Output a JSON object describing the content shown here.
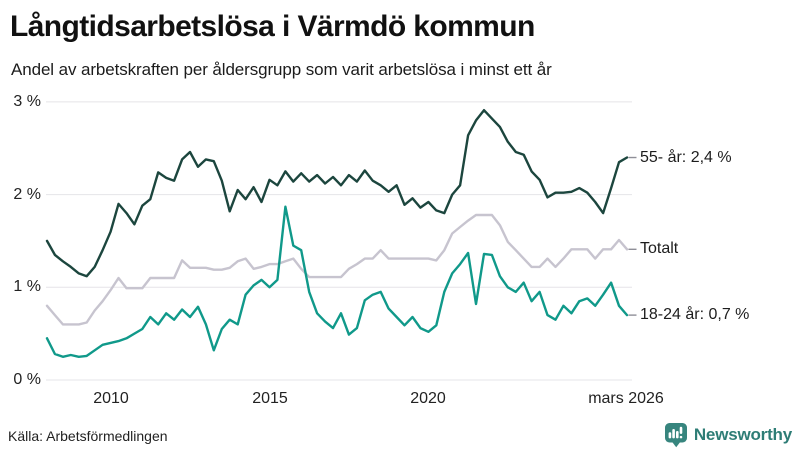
{
  "header": {
    "title": "Långtidsarbetslösa i Värmdö kommun",
    "subtitle": "Andel av arbetskraften per åldersgrupp som varit arbetslösa i minst ett år"
  },
  "footer": {
    "source": "Källa: Arbetsförmedlingen",
    "brand": "Newsworthy",
    "brand_color": "#2e7d76"
  },
  "chart_data": {
    "type": "line",
    "title": "Långtidsarbetslösa i Värmdö kommun",
    "subtitle": "Andel av arbetskraften per åldersgrupp som varit arbetslösa i minst ett år",
    "unit": "%",
    "x_start": 2008.0,
    "x_step": 0.25,
    "x_end_label": "mars 2026",
    "grid_color": "#e5e4e8",
    "label_dash_color": "#8f8f98",
    "y_axis": {
      "min": 0,
      "max": 3,
      "ticks": [
        "3 %",
        "2 %",
        "1 %",
        "0 %"
      ],
      "tick_values": [
        3,
        2,
        1,
        0
      ]
    },
    "x_axis": {
      "ticks": [
        {
          "label": "2010",
          "year": 2010
        },
        {
          "label": "2015",
          "year": 2015
        },
        {
          "label": "2020",
          "year": 2020
        },
        {
          "label": "mars 2026",
          "year": 2026.2
        }
      ]
    },
    "legend_position": "right-end-labels",
    "series": [
      {
        "id": "55plus",
        "name": "55- år",
        "end_label": "55- år: 2,4 %",
        "end_value": 2.4,
        "color": "#1c463e",
        "values": [
          1.5,
          1.35,
          1.28,
          1.22,
          1.15,
          1.12,
          1.22,
          1.4,
          1.6,
          1.9,
          1.8,
          1.68,
          1.88,
          1.95,
          2.24,
          2.18,
          2.15,
          2.38,
          2.46,
          2.3,
          2.38,
          2.36,
          2.15,
          1.82,
          2.05,
          1.95,
          2.08,
          1.92,
          2.16,
          2.1,
          2.25,
          2.14,
          2.23,
          2.14,
          2.21,
          2.12,
          2.19,
          2.1,
          2.21,
          2.14,
          2.26,
          2.15,
          2.1,
          2.03,
          2.1,
          1.89,
          1.96,
          1.86,
          1.92,
          1.83,
          1.8,
          2.0,
          2.1,
          2.64,
          2.8,
          2.91,
          2.82,
          2.73,
          2.57,
          2.46,
          2.43,
          2.25,
          2.16,
          1.97,
          2.02,
          2.02,
          2.03,
          2.07,
          2.02,
          1.92,
          1.8,
          2.07,
          2.35,
          2.4
        ]
      },
      {
        "id": "totalt",
        "name": "Totalt",
        "end_label": "Totalt",
        "end_value": 1.4,
        "color": "#c7c4cf",
        "values": [
          0.8,
          0.7,
          0.6,
          0.6,
          0.6,
          0.62,
          0.75,
          0.85,
          0.97,
          1.1,
          0.99,
          0.99,
          0.99,
          1.1,
          1.1,
          1.1,
          1.1,
          1.29,
          1.21,
          1.21,
          1.21,
          1.19,
          1.19,
          1.21,
          1.28,
          1.31,
          1.2,
          1.22,
          1.25,
          1.25,
          1.28,
          1.31,
          1.2,
          1.11,
          1.11,
          1.11,
          1.11,
          1.11,
          1.2,
          1.25,
          1.31,
          1.31,
          1.4,
          1.31,
          1.31,
          1.31,
          1.31,
          1.31,
          1.31,
          1.29,
          1.4,
          1.58,
          1.65,
          1.72,
          1.78,
          1.78,
          1.78,
          1.67,
          1.49,
          1.4,
          1.31,
          1.22,
          1.22,
          1.31,
          1.22,
          1.31,
          1.41,
          1.41,
          1.41,
          1.31,
          1.41,
          1.41,
          1.51,
          1.41
        ]
      },
      {
        "id": "18-24",
        "name": "18-24 år",
        "end_label": "18-24 år: 0,7 %",
        "end_value": 0.7,
        "color": "#10998a",
        "values": [
          0.45,
          0.28,
          0.25,
          0.27,
          0.25,
          0.26,
          0.32,
          0.38,
          0.4,
          0.42,
          0.45,
          0.5,
          0.55,
          0.68,
          0.6,
          0.72,
          0.65,
          0.76,
          0.68,
          0.79,
          0.6,
          0.32,
          0.55,
          0.65,
          0.6,
          0.92,
          1.02,
          1.08,
          1.0,
          1.08,
          1.87,
          1.45,
          1.4,
          0.95,
          0.72,
          0.63,
          0.56,
          0.72,
          0.49,
          0.56,
          0.86,
          0.92,
          0.95,
          0.77,
          0.68,
          0.59,
          0.68,
          0.56,
          0.52,
          0.59,
          0.95,
          1.15,
          1.25,
          1.37,
          0.82,
          1.36,
          1.35,
          1.12,
          1.0,
          0.95,
          1.05,
          0.85,
          0.95,
          0.7,
          0.65,
          0.8,
          0.72,
          0.85,
          0.88,
          0.8,
          0.92,
          1.05,
          0.8,
          0.7
        ]
      }
    ]
  }
}
